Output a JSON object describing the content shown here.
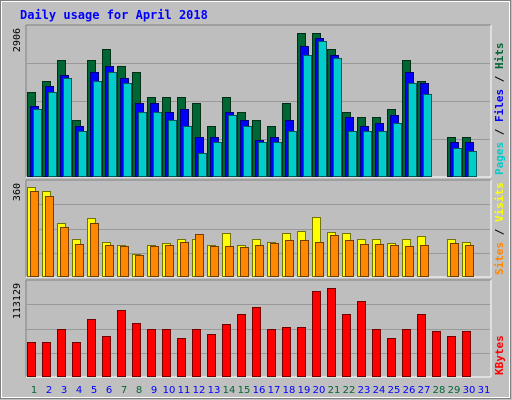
{
  "chart_data": {
    "type": "bar",
    "title": "Daily usage for April 2018",
    "days": [
      "1",
      "2",
      "3",
      "4",
      "5",
      "6",
      "7",
      "8",
      "9",
      "10",
      "11",
      "12",
      "13",
      "14",
      "15",
      "16",
      "17",
      "18",
      "19",
      "20",
      "21",
      "22",
      "23",
      "24",
      "25",
      "26",
      "27",
      "28",
      "29",
      "30",
      "31"
    ],
    "weekend_days": [
      "1",
      "7",
      "8",
      "14",
      "15",
      "21",
      "22",
      "28",
      "29"
    ],
    "colors": {
      "title": "#0000ff",
      "pages": "#00cccc",
      "files": "#0000ff",
      "hits": "#006633",
      "sites": "#ff8800",
      "visits": "#ffff00",
      "kbytes": "#ff0000",
      "weekend_label": "#006633",
      "weekday_label": "#0000ff",
      "panel_bg": "#bebebe",
      "outer_bg": "#c0c0c0"
    },
    "panels": [
      {
        "name": "hits-files-pages",
        "max_label": "2906",
        "ymax": 2906,
        "legend": [
          {
            "text": "Pages",
            "color": "#00cccc"
          },
          {
            "text": "Files",
            "color": "#0000ff"
          },
          {
            "text": "Hits",
            "color": "#006633"
          }
        ],
        "series": [
          {
            "name": "Hits",
            "color": "#006633",
            "values": [
              1688,
              1907,
              2305,
              1124,
              2305,
              2530,
              2187,
              2077,
              1575,
              1575,
              1575,
              1466,
              1015,
              1575,
              1288,
              1124,
              1015,
              1466,
              2856,
              2856,
              2530,
              1288,
              1178,
              1178,
              1342,
              2305,
              1907,
              0,
              795,
              795,
              0
            ]
          },
          {
            "name": "Files",
            "color": "#0000ff",
            "values": [
              1411,
              1796,
              2023,
              1015,
              2077,
              2187,
              1960,
              1466,
              1466,
              1288,
              1342,
              795,
              795,
              1288,
              1124,
              741,
              795,
              1124,
              2587,
              2751,
              2418,
              1178,
              1015,
              1069,
              1233,
              2077,
              1850,
              0,
              686,
              686,
              0
            ]
          },
          {
            "name": "Pages",
            "color": "#00cccc",
            "values": [
              1342,
              1687,
              1960,
              905,
              1907,
              2077,
              1850,
              1288,
              1288,
              1124,
              1015,
              466,
              686,
              1233,
              1015,
              686,
              686,
              905,
              2415,
              2681,
              2350,
              905,
              905,
              905,
              1069,
              1850,
              1632,
              0,
              576,
              521,
              0
            ]
          }
        ]
      },
      {
        "name": "visits-sites",
        "max_label": "360",
        "ymax": 360,
        "legend": [
          {
            "text": "Sites",
            "color": "#ff8800"
          },
          {
            "text": "Visits",
            "color": "#ffff00"
          }
        ],
        "series": [
          {
            "name": "Visits",
            "color": "#ffff00",
            "values": [
              352,
              338,
              213,
              148,
              230,
              136,
              126,
              91,
              126,
              133,
              148,
              148,
              126,
              173,
              126,
              148,
              138,
              173,
              181,
              236,
              176,
              173,
              148,
              148,
              133,
              148,
              160,
              0,
              148,
              138,
              0
            ]
          },
          {
            "name": "Sites",
            "color": "#ff8800",
            "values": [
              338,
              318,
              196,
              128,
              211,
              126,
              123,
              88,
              123,
              126,
              138,
              168,
              121,
              123,
              116,
              126,
              133,
              143,
              143,
              138,
              163,
              143,
              128,
              128,
              126,
              123,
              126,
              0,
              133,
              126,
              0
            ]
          }
        ]
      },
      {
        "name": "kbytes",
        "max_label": "113129",
        "ymax": 113129,
        "legend": [
          {
            "text": "KBytes",
            "color": "#ff0000"
          }
        ],
        "series": [
          {
            "name": "KBytes",
            "color": "#ff0000",
            "values": [
              43000,
              43000,
              59000,
              43000,
              71000,
              50000,
              82000,
              67000,
              59000,
              59000,
              48000,
              59000,
              53000,
              65000,
              78000,
              86000,
              59000,
              62000,
              62000,
              106000,
              110000,
              78000,
              94000,
              59000,
              48000,
              59000,
              78000,
              57000,
              50000,
              56000,
              0
            ]
          }
        ]
      }
    ]
  }
}
